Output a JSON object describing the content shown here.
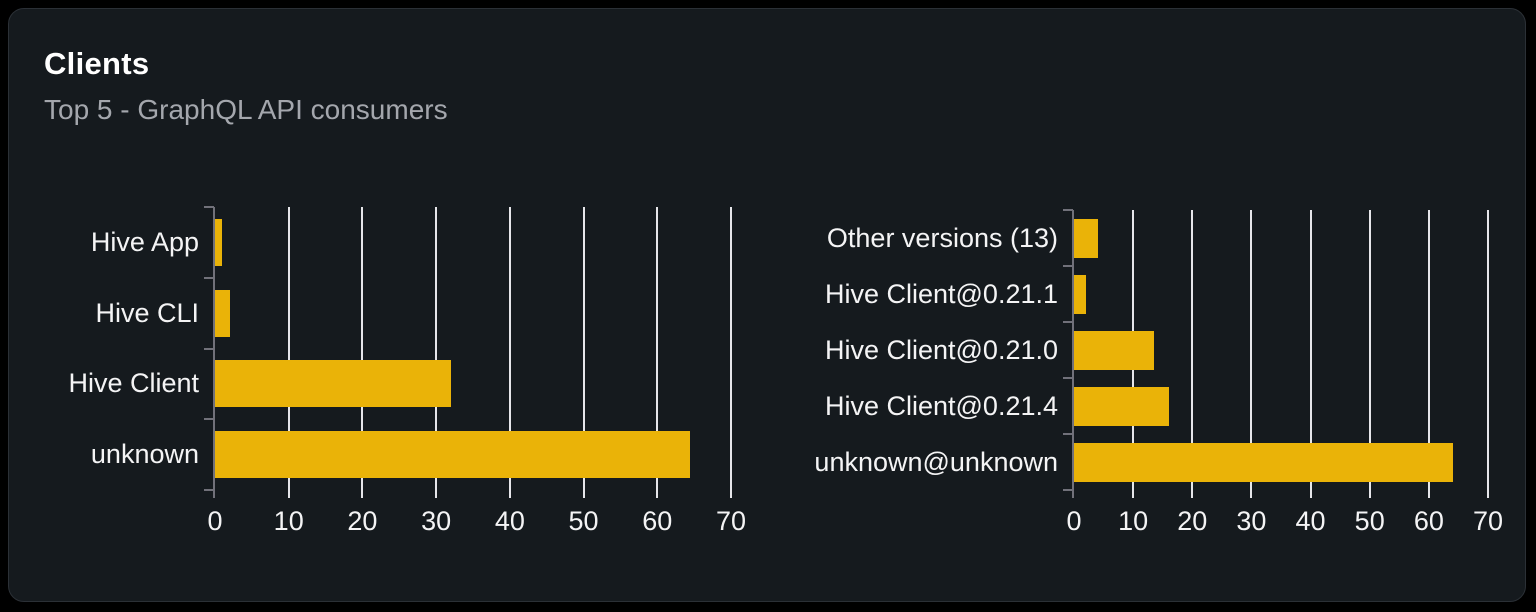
{
  "header": {
    "title": "Clients",
    "subtitle": "Top 5 - GraphQL API consumers"
  },
  "colors": {
    "page_bg": "#000000",
    "card_bg": "#151a1e",
    "card_border": "#2b3036",
    "bar": "#eab308",
    "gridline": "#e6e6ea",
    "axis": "#71717a",
    "text_primary": "#f4f4f5",
    "text_secondary": "#a4a7ad"
  },
  "chart_data": [
    {
      "type": "bar",
      "orientation": "horizontal",
      "categories": [
        "Hive App",
        "Hive CLI",
        "Hive Client",
        "unknown"
      ],
      "values": [
        1,
        2,
        32,
        64.5
      ],
      "xlim": [
        0,
        70
      ],
      "xticks": [
        0,
        10,
        20,
        30,
        40,
        50,
        60,
        70
      ],
      "grid": true,
      "legend": false,
      "bar_color": "#eab308"
    },
    {
      "type": "bar",
      "orientation": "horizontal",
      "categories": [
        "Other versions (13)",
        "Hive Client@0.21.1",
        "Hive Client@0.21.0",
        "Hive Client@0.21.4",
        "unknown@unknown"
      ],
      "values": [
        4,
        2,
        13.5,
        16,
        64
      ],
      "xlim": [
        0,
        70
      ],
      "xticks": [
        0,
        10,
        20,
        30,
        40,
        50,
        60,
        70
      ],
      "grid": true,
      "legend": false,
      "bar_color": "#eab308"
    }
  ]
}
